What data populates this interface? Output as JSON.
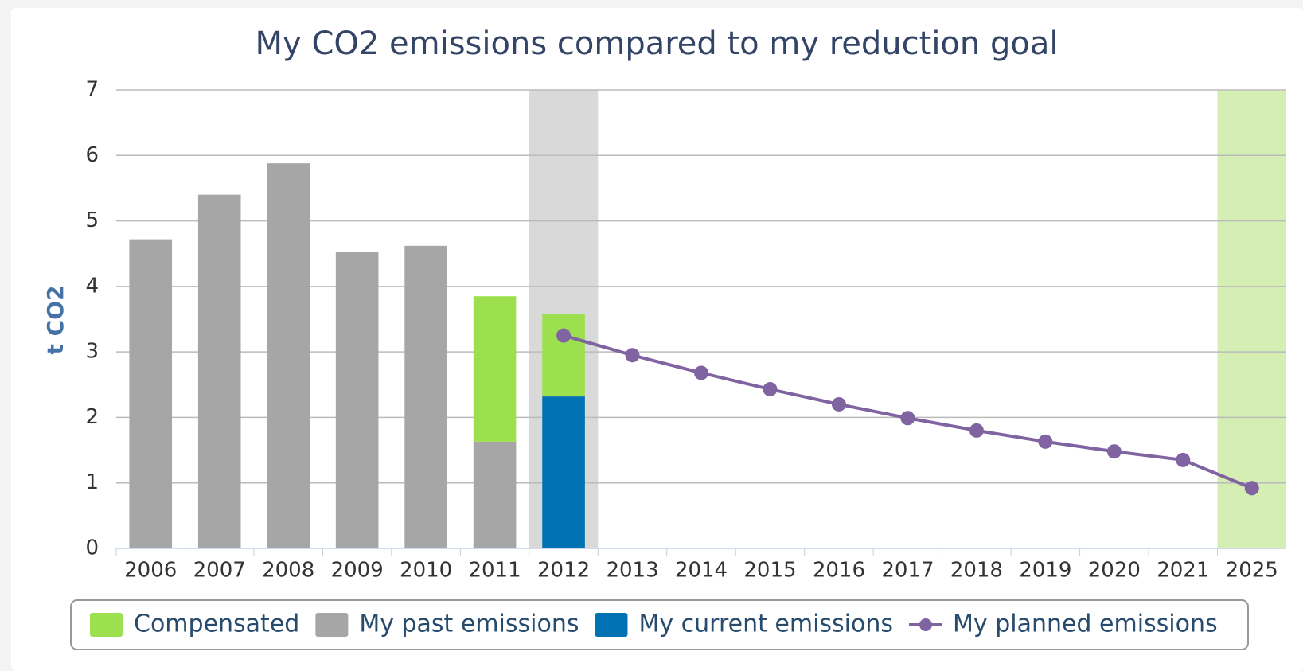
{
  "chart_data": {
    "type": "bar",
    "title": "My CO2 emissions compared to my reduction goal",
    "ylabel": "t CO2",
    "categories": [
      "2006",
      "2007",
      "2008",
      "2009",
      "2010",
      "2011",
      "2012",
      "2013",
      "2014",
      "2015",
      "2016",
      "2017",
      "2018",
      "2019",
      "2020",
      "2021",
      "2025"
    ],
    "series": [
      {
        "name": "Compensated",
        "type": "bar",
        "color": "#9de04f",
        "values": [
          null,
          null,
          null,
          null,
          null,
          2.22,
          1.26,
          null,
          null,
          null,
          null,
          null,
          null,
          null,
          null,
          null,
          null
        ]
      },
      {
        "name": "My past emissions",
        "type": "bar",
        "color": "#a6a6a6",
        "values": [
          4.72,
          5.4,
          5.88,
          4.53,
          4.62,
          1.63,
          null,
          null,
          null,
          null,
          null,
          null,
          null,
          null,
          null,
          null,
          null
        ]
      },
      {
        "name": "My current emissions",
        "type": "bar",
        "color": "#0071b3",
        "values": [
          null,
          null,
          null,
          null,
          null,
          null,
          2.32,
          null,
          null,
          null,
          null,
          null,
          null,
          null,
          null,
          null,
          null
        ]
      },
      {
        "name": "My planned emissions",
        "type": "line",
        "color": "#8064a2",
        "values": [
          null,
          null,
          null,
          null,
          null,
          null,
          3.25,
          2.95,
          2.68,
          2.43,
          2.2,
          1.99,
          1.8,
          1.63,
          1.48,
          1.35,
          0.92
        ]
      }
    ],
    "ylim": [
      0,
      7
    ],
    "yticks": [
      0,
      1,
      2,
      3,
      4,
      5,
      6,
      7
    ],
    "grid": true
  }
}
